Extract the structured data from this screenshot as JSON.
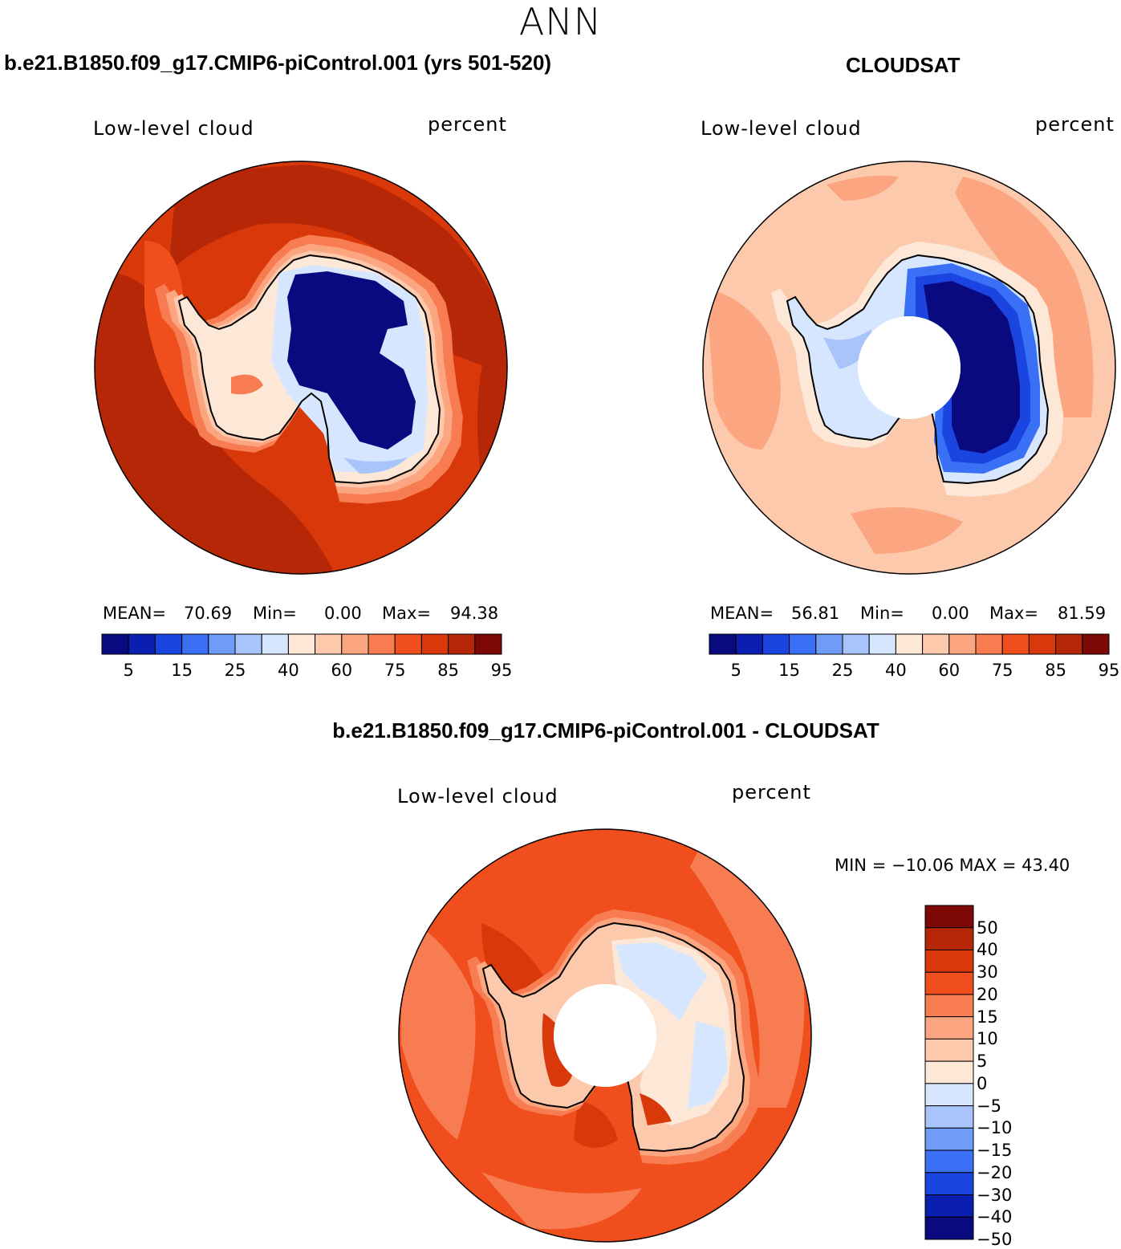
{
  "figure": {
    "season": "ANN",
    "field": "Low-level cloud",
    "units": "percent"
  },
  "panels": [
    {
      "title": "b.e21.B1850.f09_g17.CMIP6-piControl.001 (yrs 501-520)",
      "field": "Low-level cloud",
      "units": "percent",
      "stats": {
        "mean_label": "MEAN=",
        "mean": "70.69",
        "min_label": "Min=",
        "min": "0.00",
        "max_label": "Max=",
        "max": "94.38"
      },
      "levels": [
        "5",
        "15",
        "25",
        "40",
        "60",
        "75",
        "85",
        "95"
      ]
    },
    {
      "title": "CLOUDSAT",
      "field": "Low-level cloud",
      "units": "percent",
      "stats": {
        "mean_label": "MEAN=",
        "mean": "56.81",
        "min_label": "Min=",
        "min": "0.00",
        "max_label": "Max=",
        "max": "81.59"
      },
      "levels": [
        "5",
        "15",
        "25",
        "40",
        "60",
        "75",
        "85",
        "95"
      ]
    },
    {
      "title": "b.e21.B1850.f09_g17.CMIP6-piControl.001 - CLOUDSAT",
      "field": "Low-level cloud",
      "units": "percent",
      "stats_text": "MIN = −10.06 MAX =  43.40",
      "levels": [
        "50",
        "40",
        "30",
        "20",
        "15",
        "10",
        "5",
        "0",
        "−5",
        "−10",
        "−15",
        "−20",
        "−30",
        "−40",
        "−50"
      ]
    }
  ],
  "colors": {
    "abs_scale": [
      "#0a0a80",
      "#0a1fb0",
      "#1a45e0",
      "#3a70f5",
      "#6f9cf7",
      "#a8c4fb",
      "#d6e6ff",
      "#fde8d8",
      "#fcc9ad",
      "#fba680",
      "#f87c51",
      "#f04e1d",
      "#d8380a",
      "#b52707",
      "#7e0805"
    ],
    "diff_scale": [
      "#7e0805",
      "#b52707",
      "#d8380a",
      "#f04e1d",
      "#f87c51",
      "#fba680",
      "#fcc9ad",
      "#fde8d8",
      "#d6e6ff",
      "#a8c4fb",
      "#6f9cf7",
      "#3a70f5",
      "#1a45e0",
      "#0a1fb0",
      "#0a0a80"
    ],
    "coastline": "#000000",
    "missing": "#ffffff"
  }
}
